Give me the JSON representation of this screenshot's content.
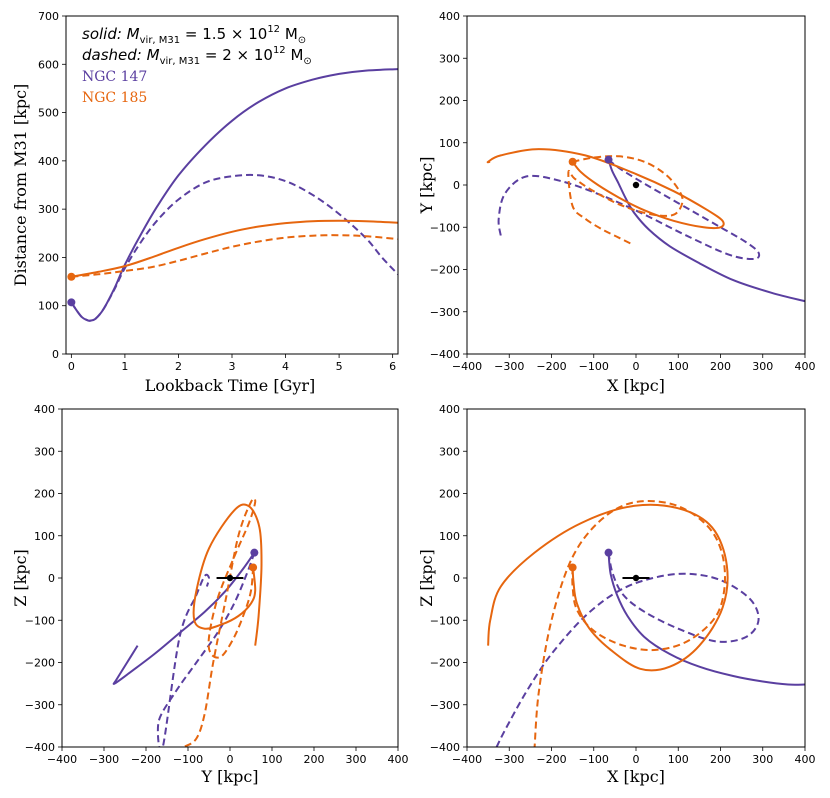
{
  "colors": {
    "ngc147": "#5a3fa0",
    "ngc185": "#e6660f",
    "m31": "#000000"
  },
  "chart_data": [
    {
      "type": "line",
      "panel": "distance-vs-time",
      "xlabel": "Lookback Time [Gyr]",
      "ylabel": "Distance from M31 [kpc]",
      "xlim": [
        -0.1,
        6.1
      ],
      "ylim": [
        0,
        700
      ],
      "xticks": [
        "0",
        "1",
        "2",
        "3",
        "4",
        "5",
        "6"
      ],
      "yticks": [
        "0",
        "100",
        "200",
        "300",
        "400",
        "500",
        "600",
        "700"
      ],
      "legend": {
        "solid_prefix": "solid",
        "solid_mass": ": M",
        "solid_sub": "vir, M31",
        "solid_value": " = 1.5 × 10",
        "solid_exp": "12",
        "solid_unit": " M",
        "solid_sun": "⊙",
        "dashed_prefix": "dashed",
        "dashed_mass": ": M",
        "dashed_sub": "vir, M31",
        "dashed_value": " = 2 × 10",
        "dashed_exp": "12",
        "dashed_unit": " M",
        "dashed_sun": "⊙",
        "ngc147": "NGC 147",
        "ngc185": "NGC 185"
      },
      "series": [
        {
          "name": "NGC 147",
          "style": "solid",
          "color": "#5a3fa0",
          "x": [
            0,
            0.1,
            0.2,
            0.3,
            0.35,
            0.45,
            0.6,
            0.8,
            1.0,
            1.3,
            1.6,
            2.0,
            2.5,
            3.0,
            3.5,
            4.0,
            4.5,
            5.0,
            5.5,
            6.1
          ],
          "y": [
            107,
            90,
            76,
            70,
            69,
            73,
            93,
            135,
            185,
            248,
            305,
            370,
            432,
            483,
            522,
            550,
            568,
            580,
            587,
            590
          ]
        },
        {
          "name": "NGC 147",
          "style": "dashed",
          "color": "#5a3fa0",
          "x": [
            0,
            0.1,
            0.2,
            0.3,
            0.35,
            0.45,
            0.6,
            0.8,
            1.0,
            1.3,
            1.6,
            2.0,
            2.5,
            3.0,
            3.5,
            4.0,
            4.5,
            5.0,
            5.5,
            5.8,
            6.1
          ],
          "y": [
            107,
            90,
            76,
            70,
            69,
            73,
            93,
            133,
            178,
            232,
            276,
            320,
            355,
            368,
            370,
            358,
            330,
            290,
            240,
            200,
            165
          ]
        },
        {
          "name": "NGC 185",
          "style": "solid",
          "color": "#e6660f",
          "x": [
            0,
            0.5,
            1.0,
            1.5,
            2.0,
            2.5,
            3.0,
            3.5,
            4.0,
            4.5,
            5.0,
            5.5,
            6.1
          ],
          "y": [
            160,
            170,
            182,
            200,
            220,
            238,
            253,
            264,
            271,
            275,
            276,
            275,
            272
          ]
        },
        {
          "name": "NGC 185",
          "style": "dashed",
          "color": "#e6660f",
          "x": [
            0,
            0.5,
            1.0,
            1.5,
            2.0,
            2.5,
            3.0,
            3.5,
            4.0,
            4.5,
            5.0,
            5.5,
            6.1
          ],
          "y": [
            160,
            165,
            172,
            180,
            193,
            208,
            222,
            233,
            241,
            245,
            246,
            244,
            238
          ]
        }
      ],
      "markers": [
        {
          "name": "NGC 147",
          "x": 0,
          "y": 107,
          "color": "#5a3fa0"
        },
        {
          "name": "NGC 185",
          "x": 0,
          "y": 160,
          "color": "#e6660f"
        }
      ]
    },
    {
      "type": "line",
      "panel": "x-y-orbit",
      "xlabel": "X [kpc]",
      "ylabel": "Y [kpc]",
      "xlim": [
        -400,
        400
      ],
      "ylim": [
        -400,
        400
      ],
      "xticks": [
        "−400",
        "−300",
        "−200",
        "−100",
        "0",
        "100",
        "200",
        "300",
        "400"
      ],
      "yticks": [
        "−400",
        "−300",
        "−200",
        "−100",
        "0",
        "100",
        "200",
        "300",
        "400"
      ],
      "series": [
        {
          "name": "NGC 147",
          "style": "solid",
          "color": "#5a3fa0",
          "x": [
            -65,
            -57,
            -42,
            -25,
            -5,
            30,
            80,
            150,
            230,
            320,
            400
          ],
          "y": [
            60,
            35,
            5,
            -30,
            -65,
            -105,
            -145,
            -185,
            -225,
            -255,
            -275
          ]
        },
        {
          "name": "NGC 147",
          "style": "dashed",
          "color": "#5a3fa0",
          "x": [
            -65,
            -40,
            0,
            60,
            130,
            200,
            260,
            290,
            280,
            220,
            120,
            20,
            -80,
            -180,
            -260,
            -310,
            -325,
            -320
          ],
          "y": [
            60,
            40,
            15,
            -20,
            -60,
            -100,
            -135,
            -160,
            -175,
            -165,
            -120,
            -70,
            -25,
            10,
            20,
            -20,
            -80,
            -120
          ]
        },
        {
          "name": "NGC 185",
          "style": "solid",
          "color": "#e6660f",
          "x": [
            -150,
            -130,
            -90,
            -40,
            20,
            90,
            160,
            200,
            205,
            170,
            90,
            -10,
            -120,
            -230,
            -320,
            -350,
            -345
          ],
          "y": [
            55,
            30,
            0,
            -30,
            -60,
            -85,
            -100,
            -100,
            -85,
            -60,
            -15,
            30,
            70,
            85,
            70,
            55,
            55
          ]
        },
        {
          "name": "NGC 185",
          "style": "dashed",
          "color": "#e6660f",
          "x": [
            -150,
            -100,
            -40,
            20,
            70,
            100,
            110,
            90,
            40,
            -30,
            -100,
            -145,
            -160,
            -150,
            -120,
            -80,
            -40,
            -10
          ],
          "y": [
            55,
            65,
            68,
            55,
            25,
            -10,
            -40,
            -70,
            -70,
            -50,
            -15,
            15,
            30,
            -50,
            -80,
            -105,
            -125,
            -140
          ]
        }
      ],
      "markers": [
        {
          "name": "NGC 147",
          "x": -65,
          "y": 60,
          "color": "#5a3fa0"
        },
        {
          "name": "NGC 185",
          "x": -150,
          "y": 55,
          "color": "#e6660f"
        },
        {
          "name": "M31",
          "x": 0,
          "y": 0,
          "color": "#000000"
        }
      ]
    },
    {
      "type": "line",
      "panel": "y-z-orbit",
      "xlabel": "Y [kpc]",
      "ylabel": "Z [kpc]",
      "xlim": [
        -400,
        400
      ],
      "ylim": [
        -400,
        400
      ],
      "xticks": [
        "−400",
        "−300",
        "−200",
        "−100",
        "0",
        "100",
        "200",
        "300",
        "400"
      ],
      "yticks": [
        "−400",
        "−300",
        "−200",
        "−100",
        "0",
        "100",
        "200",
        "300",
        "400"
      ],
      "series": [
        {
          "name": "NGC 147",
          "style": "solid",
          "color": "#5a3fa0",
          "x": [
            58,
            30,
            -10,
            -60,
            -120,
            -180,
            -240,
            -275,
            -270,
            -245,
            -220
          ],
          "y": [
            60,
            20,
            -30,
            -80,
            -130,
            -180,
            -225,
            -250,
            -240,
            -200,
            -160
          ]
        },
        {
          "name": "NGC 147",
          "style": "dashed",
          "color": "#5a3fa0",
          "x": [
            58,
            40,
            10,
            -30,
            -80,
            -130,
            -170,
            -160,
            -120,
            -80,
            -60,
            -50,
            -55
          ],
          "y": [
            60,
            10,
            -60,
            -130,
            -200,
            -270,
            -340,
            -400,
            -140,
            -40,
            5,
            0,
            -20
          ]
        },
        {
          "name": "NGC 185",
          "style": "solid",
          "color": "#e6660f",
          "x": [
            55,
            60,
            50,
            20,
            -20,
            -60,
            -85,
            -80,
            -50,
            10,
            45,
            70,
            75,
            68,
            60
          ],
          "y": [
            25,
            -30,
            -60,
            -90,
            -110,
            -120,
            -100,
            -30,
            70,
            160,
            170,
            120,
            30,
            -90,
            -160
          ]
        },
        {
          "name": "NGC 185",
          "style": "dashed",
          "color": "#e6660f",
          "x": [
            55,
            50,
            35,
            10,
            -20,
            -45,
            -50,
            -30,
            10,
            45,
            60,
            50,
            20,
            -10,
            -40,
            -60,
            -80,
            -110
          ],
          "y": [
            25,
            -30,
            -80,
            -140,
            -185,
            -180,
            -140,
            -50,
            50,
            130,
            180,
            180,
            100,
            -50,
            -200,
            -320,
            -380,
            -400
          ]
        }
      ],
      "markers": [
        {
          "name": "NGC 147",
          "x": 58,
          "y": 60,
          "color": "#5a3fa0"
        },
        {
          "name": "NGC 185",
          "x": 55,
          "y": 25,
          "color": "#e6660f"
        },
        {
          "name": "M31",
          "x": 0,
          "y": 0,
          "color": "#000000"
        }
      ]
    },
    {
      "type": "line",
      "panel": "x-z-orbit",
      "xlabel": "X [kpc]",
      "ylabel": "Z [kpc]",
      "xlim": [
        -400,
        400
      ],
      "ylim": [
        -400,
        400
      ],
      "xticks": [
        "−400",
        "−300",
        "−200",
        "−100",
        "0",
        "100",
        "200",
        "300",
        "400"
      ],
      "yticks": [
        "−400",
        "−300",
        "−200",
        "−100",
        "0",
        "100",
        "200",
        "300",
        "400"
      ],
      "series": [
        {
          "name": "NGC 147",
          "style": "solid",
          "color": "#5a3fa0",
          "x": [
            -65,
            -60,
            -45,
            -20,
            20,
            80,
            150,
            230,
            300,
            360,
            400
          ],
          "y": [
            60,
            10,
            -40,
            -90,
            -140,
            -180,
            -210,
            -232,
            -245,
            -252,
            -252
          ]
        },
        {
          "name": "NGC 147",
          "style": "dashed",
          "color": "#5a3fa0",
          "x": [
            -65,
            -55,
            -30,
            20,
            100,
            190,
            260,
            290,
            270,
            200,
            120,
            40,
            -40,
            -120,
            -200,
            -260,
            -310,
            -330
          ],
          "y": [
            60,
            10,
            -40,
            -80,
            -120,
            -150,
            -140,
            -100,
            -50,
            -5,
            10,
            0,
            -30,
            -90,
            -180,
            -270,
            -360,
            -400
          ]
        },
        {
          "name": "NGC 185",
          "style": "solid",
          "color": "#e6660f",
          "x": [
            -150,
            -148,
            -140,
            -110,
            -60,
            10,
            80,
            150,
            205,
            215,
            180,
            100,
            -10,
            -130,
            -240,
            -320,
            -345,
            -350
          ],
          "y": [
            25,
            -10,
            -60,
            -120,
            -170,
            -215,
            -210,
            -160,
            -70,
            30,
            120,
            165,
            170,
            130,
            60,
            -20,
            -100,
            -160
          ]
        },
        {
          "name": "NGC 185",
          "style": "dashed",
          "color": "#e6660f",
          "x": [
            -150,
            -150,
            -140,
            -100,
            -30,
            50,
            130,
            195,
            210,
            180,
            100,
            0,
            -80,
            -150,
            -200,
            -230,
            -240
          ],
          "y": [
            25,
            -20,
            -75,
            -125,
            -160,
            -170,
            -145,
            -80,
            20,
            110,
            170,
            180,
            140,
            50,
            -100,
            -270,
            -400
          ]
        }
      ],
      "markers": [
        {
          "name": "NGC 147",
          "x": -65,
          "y": 60,
          "color": "#5a3fa0"
        },
        {
          "name": "NGC 185",
          "x": -150,
          "y": 25,
          "color": "#e6660f"
        },
        {
          "name": "M31",
          "x": 0,
          "y": 0,
          "color": "#000000"
        }
      ]
    }
  ],
  "m31_bar": {
    "yz_halfwidth": 32,
    "xz_halfwidth": 32
  }
}
